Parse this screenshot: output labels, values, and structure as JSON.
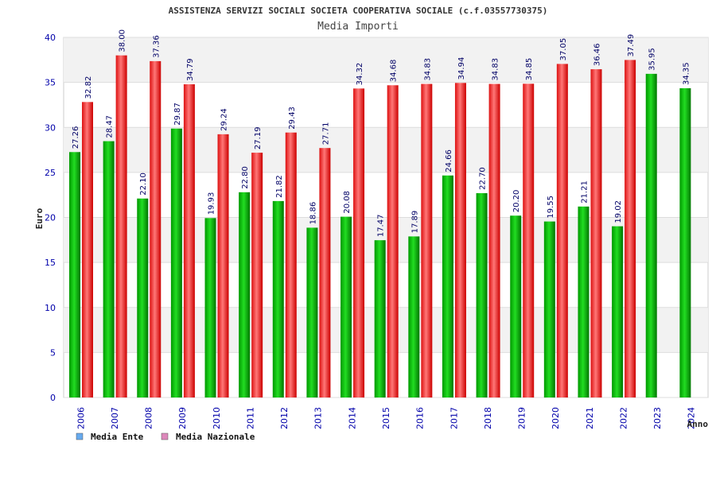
{
  "chart_data": {
    "type": "bar",
    "title": "ASSISTENZA SERVIZI SOCIALI SOCIETA COOPERATIVA SOCIALE (c.f.03557730375)",
    "subtitle": "Media Importi",
    "ylabel": "Euro",
    "xlabel": "Anno",
    "ylim": [
      0,
      40
    ],
    "yticks": [
      0,
      5,
      10,
      15,
      20,
      25,
      30,
      35,
      40
    ],
    "grid": "horizontal alternating bands",
    "legend_position": "bottom-left",
    "categories": [
      "2006",
      "2007",
      "2008",
      "2009",
      "2010",
      "2011",
      "2012",
      "2013",
      "2014",
      "2015",
      "2016",
      "2017",
      "2018",
      "2019",
      "2020",
      "2021",
      "2022",
      "2023",
      "2024"
    ],
    "series": [
      {
        "name": "Media Ente",
        "color": "#00aa00",
        "legend_color": "#66aaee",
        "values": [
          27.26,
          28.47,
          22.1,
          29.87,
          19.93,
          22.8,
          21.82,
          18.86,
          20.08,
          17.47,
          17.89,
          24.66,
          22.7,
          20.2,
          19.55,
          21.21,
          19.02,
          35.95,
          34.35
        ],
        "labels": [
          "27.26",
          "28.47",
          "22.10",
          "29.87",
          "19.93",
          "22.80",
          "21.82",
          "18.86",
          "20.08",
          "17.47",
          "17.89",
          "24.66",
          "22.70",
          "20.20",
          "19.55",
          "21.21",
          "19.02",
          "35.95",
          "34.35"
        ]
      },
      {
        "name": "Media Nazionale",
        "color": "#ee2222",
        "legend_color": "#dd88bb",
        "values": [
          32.82,
          38.0,
          37.36,
          34.79,
          29.24,
          27.19,
          29.43,
          27.71,
          34.32,
          34.68,
          34.83,
          34.94,
          34.83,
          34.85,
          37.05,
          36.46,
          37.49,
          null,
          null
        ],
        "labels": [
          "32.82",
          "38.00",
          "37.36",
          "34.79",
          "29.24",
          "27.19",
          "29.43",
          "27.71",
          "34.32",
          "34.68",
          "34.83",
          "34.94",
          "34.83",
          "34.85",
          "37.05",
          "36.46",
          "37.49",
          "",
          ""
        ]
      }
    ]
  }
}
